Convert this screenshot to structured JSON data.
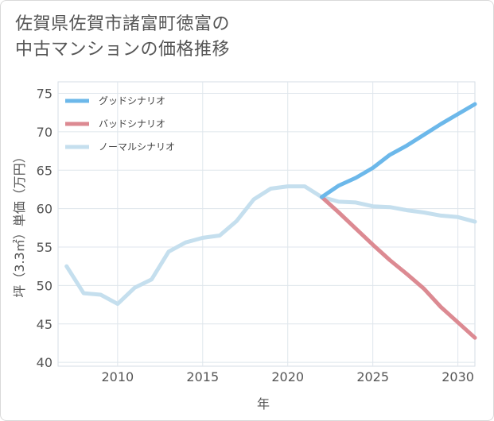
{
  "title": "佐賀県佐賀市諸富町徳富の\n中古マンションの価格推移",
  "chart_data": {
    "type": "line",
    "title": "佐賀県佐賀市諸富町徳富の中古マンションの価格推移",
    "xlabel": "年",
    "ylabel": "坪（3.3㎡）単価（万円）",
    "xlim": [
      2006.5,
      2031
    ],
    "ylim": [
      39.5,
      76.5
    ],
    "x_ticks": [
      2010,
      2015,
      2020,
      2025,
      2030
    ],
    "y_ticks": [
      40,
      45,
      50,
      55,
      60,
      65,
      70,
      75
    ],
    "grid": true,
    "legend_position": "top-left",
    "series": [
      {
        "name": "グッドシナリオ",
        "color": "#6cb8ea",
        "x": [
          2022,
          2023,
          2024,
          2025,
          2026,
          2027,
          2028,
          2029,
          2030,
          2031
        ],
        "y": [
          61.5,
          63.0,
          64.0,
          65.3,
          67.0,
          68.2,
          69.6,
          71.0,
          72.3,
          73.6
        ]
      },
      {
        "name": "バッドシナリオ",
        "color": "#dc8a92",
        "x": [
          2022,
          2023,
          2024,
          2025,
          2026,
          2027,
          2028,
          2029,
          2030,
          2031
        ],
        "y": [
          61.5,
          59.5,
          57.4,
          55.3,
          53.3,
          51.5,
          49.6,
          47.2,
          45.2,
          43.2
        ]
      },
      {
        "name": "ノーマルシナリオ",
        "color": "#c5dfee",
        "x": [
          2007,
          2008,
          2009,
          2010,
          2011,
          2012,
          2013,
          2014,
          2015,
          2016,
          2017,
          2018,
          2019,
          2020,
          2021,
          2022,
          2023,
          2024,
          2025,
          2026,
          2027,
          2028,
          2029,
          2030,
          2031
        ],
        "y": [
          52.5,
          49.0,
          48.8,
          47.6,
          49.7,
          50.8,
          54.4,
          55.6,
          56.2,
          56.5,
          58.4,
          61.2,
          62.6,
          62.9,
          62.9,
          61.5,
          60.9,
          60.8,
          60.3,
          60.2,
          59.8,
          59.5,
          59.1,
          58.9,
          58.3
        ]
      }
    ]
  }
}
